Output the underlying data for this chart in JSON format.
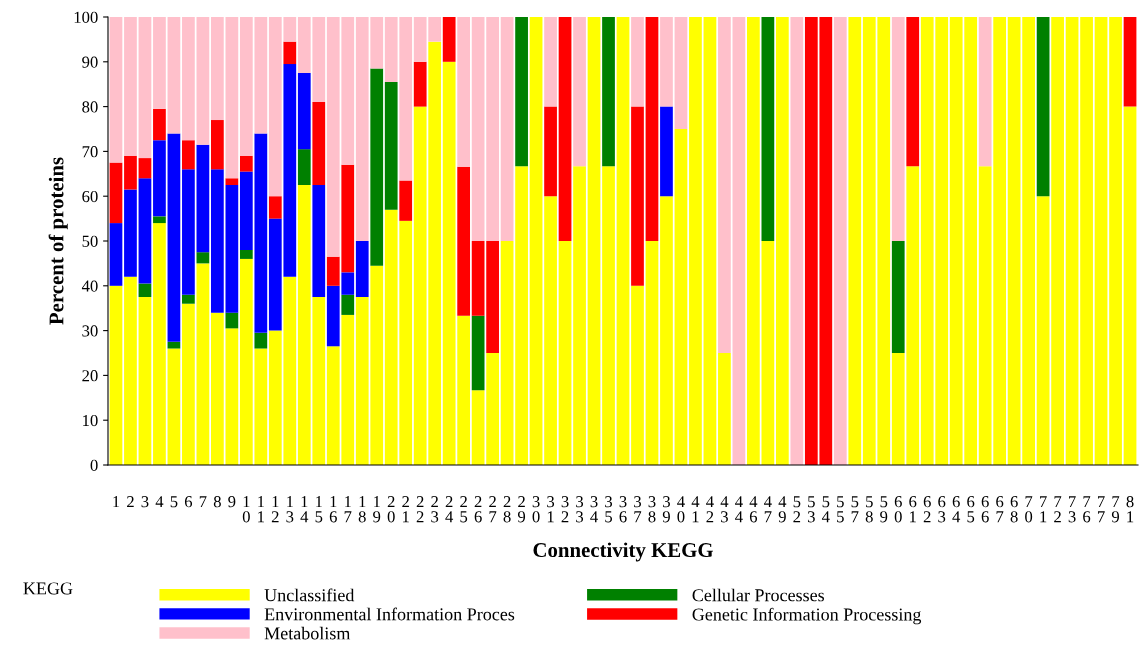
{
  "chart_data": {
    "type": "bar",
    "stacked": true,
    "xlabel": "Connectivity KEGG",
    "ylabel": "Percent of proteins",
    "legend_title": "KEGG",
    "legend": "bottom",
    "grid": false,
    "categories": [
      "1",
      "2",
      "3",
      "4",
      "5",
      "6",
      "7",
      "8",
      "9",
      "10",
      "11",
      "12",
      "13",
      "14",
      "15",
      "16",
      "17",
      "18",
      "19",
      "20",
      "21",
      "22",
      "23",
      "24",
      "25",
      "26",
      "27",
      "28",
      "29",
      "30",
      "31",
      "32",
      "33",
      "34",
      "35",
      "36",
      "37",
      "38",
      "39",
      "40",
      "41",
      "42",
      "43",
      "44",
      "46",
      "47",
      "49",
      "52",
      "53",
      "54",
      "55",
      "57",
      "58",
      "59",
      "60",
      "61",
      "62",
      "63",
      "64",
      "65",
      "66",
      "67",
      "68",
      "70",
      "71",
      "72",
      "73",
      "76",
      "77",
      "79",
      "81"
    ],
    "ylim": [
      0,
      100
    ],
    "yticks": [
      0,
      10,
      20,
      30,
      40,
      50,
      60,
      70,
      80,
      90,
      100
    ],
    "series": [
      {
        "name": "Unclassified",
        "color": "#ffff00",
        "values": [
          40,
          42,
          37.5,
          54,
          26,
          36,
          45,
          34,
          30.5,
          46,
          26,
          30,
          42,
          62.5,
          37.5,
          26.5,
          33.5,
          37.5,
          44.5,
          57,
          54.5,
          80,
          94.5,
          90,
          33.3,
          16.7,
          25,
          50,
          66.7,
          100,
          60,
          50,
          66.7,
          100,
          66.7,
          100,
          40,
          50,
          60,
          75,
          100,
          100,
          25,
          0,
          100,
          50,
          100,
          0,
          0,
          0,
          0,
          100,
          100,
          100,
          25,
          66.7,
          100,
          100,
          100,
          100,
          66.7,
          100,
          100,
          100,
          60,
          100,
          100,
          100,
          100,
          100,
          80
        ]
      },
      {
        "name": "Cellular Processes",
        "color": "#008000",
        "values": [
          0,
          0,
          3,
          1.5,
          1.5,
          2,
          2.5,
          0,
          3.5,
          2,
          3.5,
          0,
          0,
          8,
          0,
          0,
          4.5,
          0,
          44,
          28.5,
          0,
          0,
          0,
          0,
          0,
          16.6,
          0,
          0,
          33.3,
          0,
          0,
          0,
          0,
          0,
          33.3,
          0,
          0,
          0,
          0,
          0,
          0,
          0,
          0,
          0,
          0,
          50,
          0,
          0,
          0,
          0,
          0,
          0,
          0,
          0,
          25,
          0,
          0,
          0,
          0,
          0,
          0,
          0,
          0,
          0,
          40,
          0,
          0,
          0,
          0,
          0,
          0
        ]
      },
      {
        "name": "Environmental Information Proces",
        "color": "#0000ff",
        "values": [
          14,
          19.5,
          23.5,
          17,
          46.5,
          28,
          24,
          32,
          28.5,
          17.5,
          44.5,
          25,
          47.5,
          17,
          25,
          13.5,
          5,
          12.5,
          0,
          0,
          0,
          0,
          0,
          0,
          0,
          0,
          0,
          0,
          0,
          0,
          0,
          0,
          0,
          0,
          0,
          0,
          0,
          0,
          20,
          0,
          0,
          0,
          0,
          0,
          0,
          0,
          0,
          0,
          0,
          0,
          0,
          0,
          0,
          0,
          0,
          0,
          0,
          0,
          0,
          0,
          0,
          0,
          0,
          0,
          0,
          0,
          0,
          0,
          0,
          0,
          0
        ]
      },
      {
        "name": "Genetic Information Processing",
        "color": "#ff0000",
        "values": [
          13.5,
          7.5,
          4.5,
          7,
          0,
          6.5,
          0,
          11,
          1.5,
          3.5,
          0,
          5,
          5,
          0,
          18.5,
          6.5,
          24,
          0,
          0,
          0,
          9,
          10,
          0,
          10,
          33.3,
          16.7,
          25,
          0,
          0,
          0,
          20,
          50,
          0,
          0,
          0,
          0,
          40,
          50,
          0,
          0,
          0,
          0,
          0,
          0,
          0,
          0,
          0,
          0,
          100,
          100,
          0,
          0,
          0,
          0,
          0,
          33.3,
          0,
          0,
          0,
          0,
          0,
          0,
          0,
          0,
          0,
          0,
          0,
          0,
          0,
          0,
          20
        ]
      },
      {
        "name": "Metabolism",
        "color": "#ffc0cb",
        "values": [
          32.5,
          31,
          31.5,
          20.5,
          26,
          27.5,
          28.5,
          23,
          36,
          31,
          26,
          40,
          5.5,
          12.5,
          19,
          53.5,
          33,
          50,
          11.5,
          14.5,
          36.5,
          10,
          5.5,
          0,
          33.4,
          50,
          50,
          50,
          0,
          0,
          20,
          0,
          33.3,
          0,
          0,
          0,
          20,
          0,
          20,
          25,
          0,
          0,
          75,
          100,
          0,
          0,
          0,
          100,
          0,
          0,
          100,
          0,
          0,
          0,
          50,
          0,
          0,
          0,
          0,
          0,
          33.3,
          0,
          0,
          0,
          0,
          0,
          0,
          0,
          0,
          0,
          0
        ]
      }
    ]
  }
}
